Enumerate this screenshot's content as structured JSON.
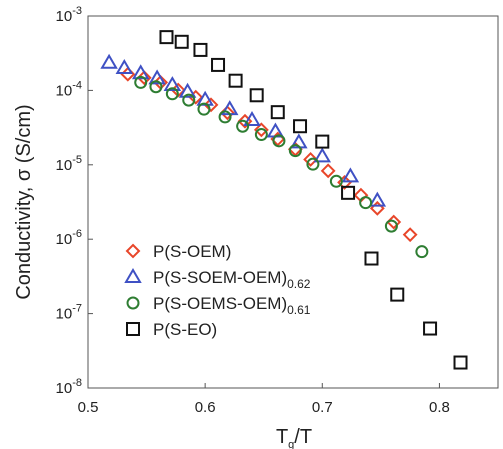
{
  "chart_data": {
    "type": "scatter",
    "xlabel": {
      "main": "T",
      "sub": "g",
      "rest": "/T"
    },
    "ylabel": "Conductivity, σ (S/cm)",
    "xlim": [
      0.5,
      0.85
    ],
    "xticks": [
      0.5,
      0.6,
      0.7,
      0.8
    ],
    "xtick_labels": [
      "0.5",
      "0.6",
      "0.7",
      "0.8"
    ],
    "ylim": [
      1e-08,
      0.001
    ],
    "yscale": "log",
    "ytick_labels": [
      {
        "base": "10",
        "exp": "-3"
      },
      {
        "base": "10",
        "exp": "-4"
      },
      {
        "base": "10",
        "exp": "-5"
      },
      {
        "base": "10",
        "exp": "-6"
      },
      {
        "base": "10",
        "exp": "-7"
      },
      {
        "base": "10",
        "exp": "-8"
      }
    ],
    "grid": false,
    "legend_position": "bottom-left",
    "series": [
      {
        "name": "P(S-OEM)",
        "marker": "diamond",
        "color": "#e8462a",
        "points": [
          [
            0.534,
            0.000165
          ],
          [
            0.548,
            0.000148
          ],
          [
            0.562,
            0.000128
          ],
          [
            0.577,
            0.000101
          ],
          [
            0.592,
            8.1e-05
          ],
          [
            0.605,
            6.4e-05
          ],
          [
            0.619,
            5e-05
          ],
          [
            0.634,
            3.85e-05
          ],
          [
            0.648,
            2.95e-05
          ],
          [
            0.662,
            2.22e-05
          ],
          [
            0.677,
            1.62e-05
          ],
          [
            0.69,
            1.18e-05
          ],
          [
            0.705,
            8.3e-06
          ],
          [
            0.719,
            5.8e-06
          ],
          [
            0.733,
            3.9e-06
          ],
          [
            0.747,
            2.6e-06
          ],
          [
            0.761,
            1.7e-06
          ],
          [
            0.775,
            1.15e-06
          ]
        ]
      },
      {
        "name": "P(S-SOEM-OEM)",
        "name_sub": "0.62",
        "marker": "triangle",
        "color": "#3f51c4",
        "points": [
          [
            0.518,
            0.000235
          ],
          [
            0.531,
            0.0002
          ],
          [
            0.545,
            0.00017
          ],
          [
            0.559,
            0.000145
          ],
          [
            0.572,
            0.000118
          ],
          [
            0.585,
            9.6e-05
          ],
          [
            0.6,
            7.5e-05
          ],
          [
            0.621,
            5.6e-05
          ],
          [
            0.64,
            4e-05
          ],
          [
            0.66,
            2.8e-05
          ],
          [
            0.68,
            2e-05
          ],
          [
            0.7,
            1.3e-05
          ],
          [
            0.724,
            7e-06
          ],
          [
            0.747,
            3.3e-06
          ]
        ]
      },
      {
        "name": "P(S-OEMS-OEM)",
        "name_sub": "0.61",
        "marker": "circle",
        "color": "#2e7d32",
        "points": [
          [
            0.545,
            0.000128
          ],
          [
            0.558,
            0.000112
          ],
          [
            0.572,
            9e-05
          ],
          [
            0.586,
            7.4e-05
          ],
          [
            0.599,
            5.6e-05
          ],
          [
            0.617,
            4.4e-05
          ],
          [
            0.632,
            3.3e-05
          ],
          [
            0.648,
            2.55e-05
          ],
          [
            0.663,
            2.1e-05
          ],
          [
            0.677,
            1.55e-05
          ],
          [
            0.692,
            1.02e-05
          ],
          [
            0.712,
            6e-06
          ],
          [
            0.737,
            3.1e-06
          ],
          [
            0.759,
            1.5e-06
          ],
          [
            0.785,
            6.8e-07
          ]
        ]
      },
      {
        "name": "P(S-EO)",
        "marker": "square",
        "color": "#111111",
        "points": [
          [
            0.567,
            0.00052
          ],
          [
            0.58,
            0.00045
          ],
          [
            0.596,
            0.00035
          ],
          [
            0.611,
            0.00022
          ],
          [
            0.626,
            0.000135
          ],
          [
            0.644,
            8.6e-05
          ],
          [
            0.662,
            5.1e-05
          ],
          [
            0.681,
            3.3e-05
          ],
          [
            0.7,
            2.05e-05
          ],
          [
            0.722,
            4.2e-06
          ],
          [
            0.742,
            5.5e-07
          ],
          [
            0.764,
            1.8e-07
          ],
          [
            0.792,
            6.3e-08
          ],
          [
            0.818,
            2.2e-08
          ]
        ]
      }
    ]
  }
}
